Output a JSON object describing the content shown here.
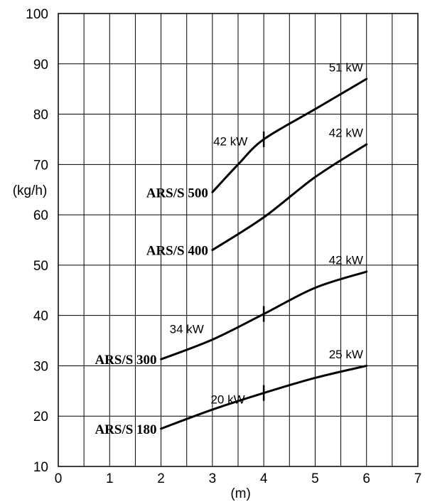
{
  "chart_data": {
    "type": "line",
    "xlabel": "(m)",
    "ylabel": "(kg/h)",
    "xlim": [
      0,
      7
    ],
    "ylim": [
      10,
      100
    ],
    "x_ticks": [
      "0",
      "1",
      "2",
      "3",
      "4",
      "5",
      "6",
      "7"
    ],
    "y_ticks": [
      "10",
      "20",
      "30",
      "40",
      "50",
      "60",
      "70",
      "80",
      "90",
      "100"
    ],
    "grid": true,
    "series": [
      {
        "name": "ARS/S 180",
        "points": [
          [
            2,
            17.5
          ],
          [
            3,
            21.3
          ],
          [
            4,
            24.6
          ],
          [
            5,
            27.6
          ],
          [
            6,
            30
          ]
        ],
        "power_labels": [
          {
            "text": "20 kW",
            "x": 3.3,
            "y": 22.5
          },
          {
            "text": "25 kW",
            "x": 5.6,
            "y": 31.5
          }
        ],
        "break_at": 4
      },
      {
        "name": "ARS/S 300",
        "points": [
          [
            2,
            31.3
          ],
          [
            3,
            35.2
          ],
          [
            4,
            40.3
          ],
          [
            5,
            45.5
          ],
          [
            6,
            48.7
          ]
        ],
        "power_labels": [
          {
            "text": "34 kW",
            "x": 2.5,
            "y": 36.5
          },
          {
            "text": "42 kW",
            "x": 5.6,
            "y": 50.2
          }
        ],
        "break_at": 4
      },
      {
        "name": "ARS/S 400",
        "points": [
          [
            3,
            53
          ],
          [
            4,
            59.5
          ],
          [
            5,
            67.5
          ],
          [
            6,
            74
          ]
        ],
        "power_labels": [
          {
            "text": "42 kW",
            "x": 5.6,
            "y": 75.5
          }
        ]
      },
      {
        "name": "ARS/S 500",
        "points": [
          [
            3,
            64.5
          ],
          [
            3.5,
            70
          ],
          [
            4,
            75
          ],
          [
            5,
            81
          ],
          [
            6,
            87
          ]
        ],
        "power_labels": [
          {
            "text": "42 kW",
            "x": 3.35,
            "y": 73.8
          },
          {
            "text": "51 kW",
            "x": 5.6,
            "y": 88.5
          }
        ],
        "break_at": 4
      }
    ]
  }
}
